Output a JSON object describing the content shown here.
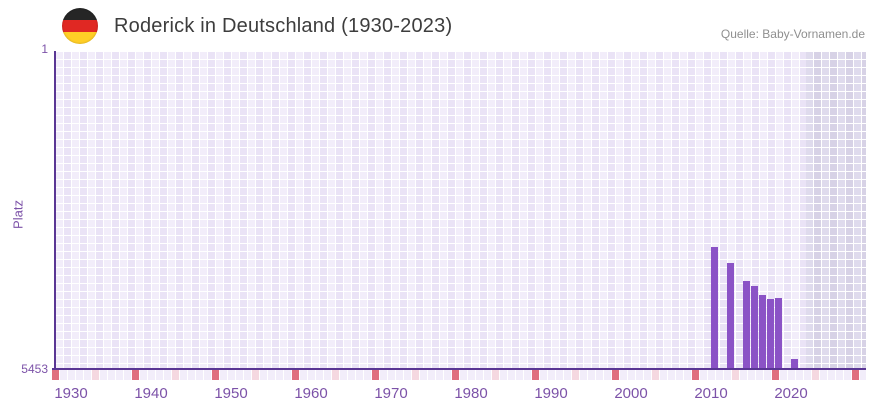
{
  "header": {
    "title": "Roderick in Deutschland (1930-2023)",
    "source": "Quelle: Baby-Vornamen.de"
  },
  "chart_data": {
    "type": "bar",
    "title": "Roderick in Deutschland (1930-2023)",
    "xlabel": "",
    "ylabel": "Platz",
    "y_axis": {
      "top_tick": "1",
      "bottom_tick": "5453",
      "min": 1,
      "max": 5453,
      "inverted": true
    },
    "x_axis": {
      "tick_years": [
        1930,
        1940,
        1950,
        1960,
        1970,
        1980,
        1990,
        2000,
        2010,
        2020
      ],
      "range_start": 1928,
      "range_end": 2029
    },
    "series": [
      {
        "name": "Platz",
        "points": [
          {
            "year": 2011,
            "rank": 3350
          },
          {
            "year": 2013,
            "rank": 3620
          },
          {
            "year": 2015,
            "rank": 3930
          },
          {
            "year": 2016,
            "rank": 4020
          },
          {
            "year": 2017,
            "rank": 4175
          },
          {
            "year": 2018,
            "rank": 4245
          },
          {
            "year": 2019,
            "rank": 4225
          },
          {
            "year": 2021,
            "rank": 5280
          }
        ]
      }
    ],
    "no_data_band_from_year": 2022,
    "legend": "none",
    "grid": "checkered background, white gridlines",
    "colors": {
      "bar": "#8b53c6",
      "axis_line": "#5a3694",
      "tick_label": "#7c52a8",
      "plot_bg_light": "#f2edfa",
      "plot_bg_dark": "#eae3f6",
      "band_bg_light": "#dfdbed",
      "band_bg_dark": "#d7d2e6",
      "decade_marker_red": "#e0707e",
      "half_decade_marker_pink": "#f5d8e0",
      "title_text": "#3d3d3d",
      "source_text": "#8f8f8f"
    }
  }
}
